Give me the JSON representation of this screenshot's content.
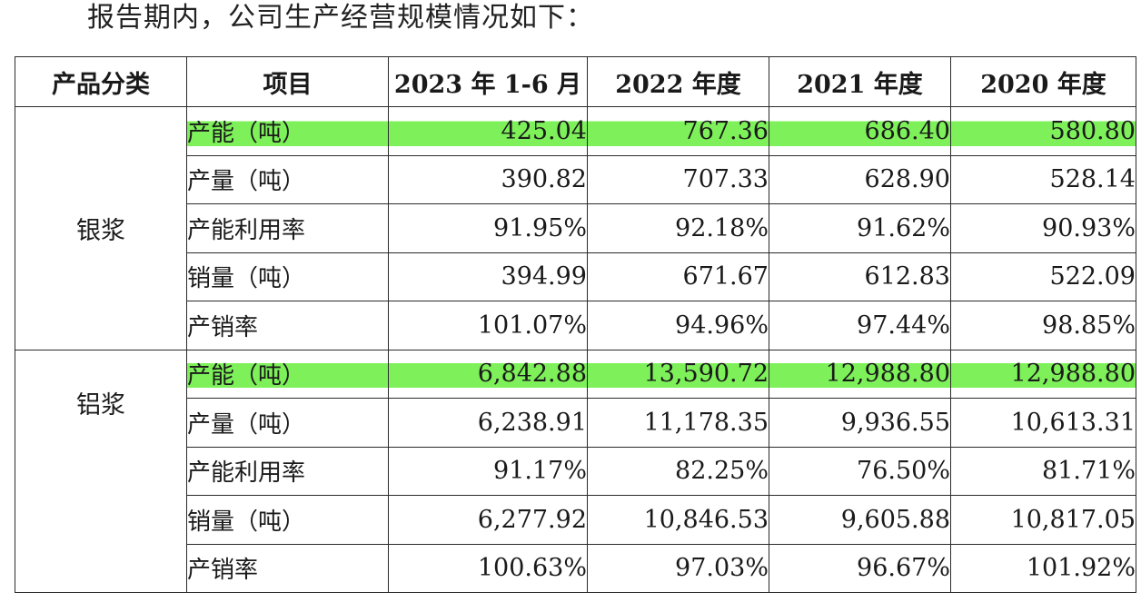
{
  "intro_text": "报告期内，公司生产经营规模情况如下：",
  "table": {
    "headers": [
      "产品分类",
      "项目",
      "2023 年 1-6 月",
      "2022 年度",
      "2021 年度",
      "2020 年度"
    ],
    "groups": [
      {
        "category": "银浆",
        "rows": [
          {
            "item": "产能（吨）",
            "values": [
              "425.04",
              "767.36",
              "686.40",
              "580.80"
            ],
            "highlighted": true
          },
          {
            "item": "产量（吨）",
            "values": [
              "390.82",
              "707.33",
              "628.90",
              "528.14"
            ],
            "highlighted": false
          },
          {
            "item": "产能利用率",
            "values": [
              "91.95%",
              "92.18%",
              "91.62%",
              "90.93%"
            ],
            "highlighted": false
          },
          {
            "item": "销量（吨）",
            "values": [
              "394.99",
              "671.67",
              "612.83",
              "522.09"
            ],
            "highlighted": false
          },
          {
            "item": "产销率",
            "values": [
              "101.07%",
              "94.96%",
              "97.44%",
              "98.85%"
            ],
            "highlighted": false
          }
        ]
      },
      {
        "category": "铝浆",
        "rows": [
          {
            "item": "产能（吨）",
            "values": [
              "6,842.88",
              "13,590.72",
              "12,988.80",
              "12,988.80"
            ],
            "highlighted": true
          },
          {
            "item": "产量（吨）",
            "values": [
              "6,238.91",
              "11,178.35",
              "9,936.55",
              "10,613.31"
            ],
            "highlighted": false
          },
          {
            "item": "产能利用率",
            "values": [
              "91.17%",
              "82.25%",
              "76.50%",
              "81.71%"
            ],
            "highlighted": false
          },
          {
            "item": "销量（吨）",
            "values": [
              "6,277.92",
              "10,846.53",
              "9,605.88",
              "10,817.05"
            ],
            "highlighted": false
          },
          {
            "item": "产销率",
            "values": [
              "100.63%",
              "97.03%",
              "96.67%",
              "101.92%"
            ],
            "highlighted": false
          }
        ]
      }
    ]
  },
  "highlight_color": "#7df05a"
}
